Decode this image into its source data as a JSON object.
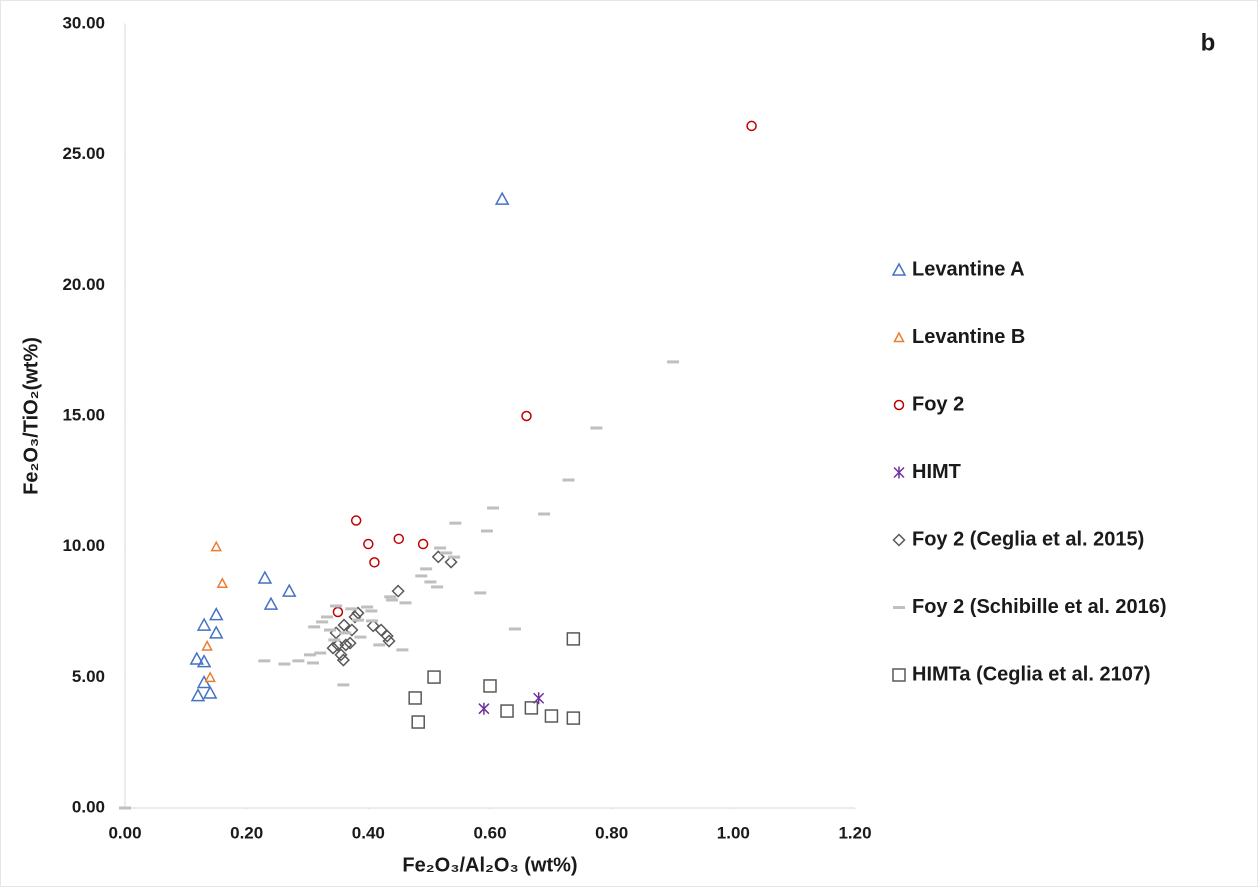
{
  "chart_data": {
    "type": "scatter",
    "annotation": "b",
    "xlabel": "Fe₂O₃/Al₂O₃ (wt%)",
    "ylabel": "Fe₂O₃/TiO₂(wt%)",
    "xlim": [
      0,
      1.2
    ],
    "ylim": [
      0,
      30
    ],
    "xticks": [
      {
        "value": 0,
        "label": "0.00"
      },
      {
        "value": 0.2,
        "label": "0.20"
      },
      {
        "value": 0.4,
        "label": "0.40"
      },
      {
        "value": 0.6,
        "label": "0.60"
      },
      {
        "value": 0.8,
        "label": "0.80"
      },
      {
        "value": 1.0,
        "label": "1.00"
      },
      {
        "value": 1.2,
        "label": "1.20"
      }
    ],
    "yticks": [
      {
        "value": 0,
        "label": "0.00"
      },
      {
        "value": 5,
        "label": "5.00"
      },
      {
        "value": 10,
        "label": "10.00"
      },
      {
        "value": 15,
        "label": "15.00"
      },
      {
        "value": 20,
        "label": "20.00"
      },
      {
        "value": 25,
        "label": "25.00"
      },
      {
        "value": 30,
        "label": "30.00"
      }
    ],
    "grid": false,
    "legend": "right",
    "series": [
      {
        "name": "Levantine A",
        "color": "#4472c4",
        "marker": "triangle",
        "x": [
          0.118,
          0.13,
          0.13,
          0.15,
          0.15,
          0.23,
          0.24,
          0.27,
          0.62,
          0.12,
          0.14,
          0.13
        ],
        "values": [
          5.7,
          5.6,
          7.0,
          6.7,
          7.4,
          8.8,
          7.8,
          8.3,
          23.3,
          4.3,
          4.4,
          4.8
        ]
      },
      {
        "name": "Levantine B",
        "color": "#ed7d31",
        "marker": "small-triangle",
        "x": [
          0.15,
          0.16,
          0.135,
          0.14
        ],
        "values": [
          10.0,
          8.6,
          6.2,
          5.0
        ]
      },
      {
        "name": "Foy 2",
        "color": "#c00000",
        "marker": "circle",
        "x": [
          1.03,
          0.66,
          0.38,
          0.4,
          0.41,
          0.45,
          0.49,
          0.35
        ],
        "values": [
          26.1,
          15.0,
          11.0,
          10.1,
          9.4,
          10.3,
          10.1,
          7.5
        ]
      },
      {
        "name": "HIMT",
        "color": "#7030a0",
        "marker": "asterisk",
        "x": [
          0.59,
          0.68
        ],
        "values": [
          3.8,
          4.2
        ]
      },
      {
        "name": "Foy 2 (Ceglia et al. 2015)",
        "color": "#595959",
        "marker": "diamond",
        "x": [
          0.515,
          0.536,
          0.449,
          0.347,
          0.342,
          0.355,
          0.359,
          0.363,
          0.36,
          0.373,
          0.378,
          0.383,
          0.408,
          0.421,
          0.431,
          0.434,
          0.37,
          0.35
        ],
        "values": [
          9.61,
          9.41,
          8.3,
          6.7,
          6.12,
          5.86,
          5.66,
          6.24,
          7.0,
          6.81,
          7.31,
          7.46,
          6.97,
          6.81,
          6.58,
          6.39,
          6.31,
          6.24
        ]
      },
      {
        "name": "Foy 2 (Schibille et al. 2016)",
        "color": "#bfbfbf",
        "marker": "dash",
        "x": [
          0.775,
          0.729,
          0.689,
          0.605,
          0.595,
          0.543,
          0.518,
          0.528,
          0.541,
          0.495,
          0.487,
          0.502,
          0.513,
          0.584,
          0.461,
          0.436,
          0.439,
          0.405,
          0.406,
          0.398,
          0.372,
          0.347,
          0.332,
          0.324,
          0.311,
          0.337,
          0.362,
          0.383,
          0.418,
          0.456,
          0.641,
          0.229,
          0.262,
          0.285,
          0.309,
          0.321,
          0.304,
          0.359,
          0.901,
          0.387,
          0.344,
          0
        ],
        "values": [
          14.54,
          12.55,
          11.25,
          11.48,
          10.6,
          10.9,
          9.95,
          9.76,
          9.6,
          9.15,
          8.88,
          8.65,
          8.46,
          8.23,
          7.85,
          8.08,
          7.96,
          7.54,
          7.16,
          7.69,
          7.62,
          7.73,
          7.31,
          7.12,
          6.93,
          6.81,
          6.7,
          7.19,
          6.24,
          6.05,
          6.85,
          5.63,
          5.51,
          5.63,
          5.55,
          5.93,
          5.86,
          4.71,
          17.07,
          6.54,
          6.43,
          0
        ]
      },
      {
        "name": "HIMTa (Ceglia et al. 2107)",
        "color": "#595959",
        "marker": "square",
        "x": [
          0.737,
          0.508,
          0.6,
          0.477,
          0.482,
          0.628,
          0.668,
          0.701,
          0.737
        ],
        "values": [
          6.47,
          5.01,
          4.67,
          4.21,
          3.29,
          3.71,
          3.83,
          3.52,
          3.44
        ]
      }
    ]
  }
}
